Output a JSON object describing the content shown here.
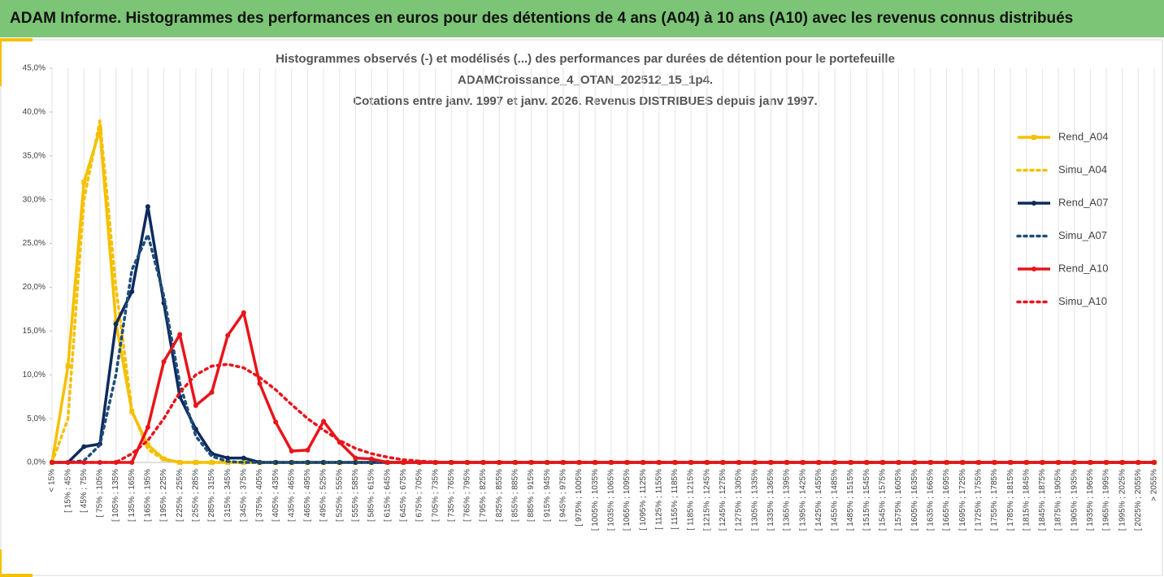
{
  "header": {
    "title": "ADAM Informe. Histogrammes des performances en euros pour des détentions de 4 ans (A04) à 10 ans (A10) avec les revenus connus distribués"
  },
  "chart_data": {
    "type": "line",
    "title": [
      "Histogrammes observés (-) et modélisés (...) des performances par durées de détention pour le portefeuille",
      "ADAMCroissance_4_OTAN_202512_15_1p4.",
      "Cotations entre janv. 1997 et janv. 2026. Revenus DISTRIBUES depuis janv 1997."
    ],
    "categories": [
      "< 15%",
      "[ 15% ; 45%",
      "[ 45% ; 75%",
      "[ 75% ; 105%",
      "[ 105% ; 135%",
      "[ 135% ; 165%",
      "[ 165% ; 195%",
      "[ 195% ; 225%",
      "[ 225% ; 255%",
      "[ 255% ; 285%",
      "[ 285% ; 315%",
      "[ 315% ; 345%",
      "[ 345% ; 375%",
      "[ 375% ; 405%",
      "[ 405% ; 435%",
      "[ 435% ; 465%",
      "[ 465% ; 495%",
      "[ 495% ; 525%",
      "[ 525% ; 555%",
      "[ 555% ; 585%",
      "[ 585% ; 615%",
      "[ 615% ; 645%",
      "[ 645% ; 675%",
      "[ 675% ; 705%",
      "[ 705% ; 735%",
      "[ 735% ; 765%",
      "[ 765% ; 795%",
      "[ 795% ; 825%",
      "[ 825% ; 855%",
      "[ 855% ; 885%",
      "[ 885% ; 915%",
      "[ 915% ; 945%",
      "[ 945% ; 975%",
      "[ 975% ; 1005%",
      "[ 1005% ; 1035%",
      "[ 1035% ; 1065%",
      "[ 1065% ; 1095%",
      "[ 1095% ; 1125%",
      "[ 1125% ; 1155%",
      "[ 1155% ; 1185%",
      "[ 1185% ; 1215%",
      "[ 1215% ; 1245%",
      "[ 1245% ; 1275%",
      "[ 1275% ; 1305%",
      "[ 1305% ; 1335%",
      "[ 1335% ; 1365%",
      "[ 1365% ; 1395%",
      "[ 1395% ; 1425%",
      "[ 1425% ; 1455%",
      "[ 1455% ; 1485%",
      "[ 1485% ; 1515%",
      "[ 1515% ; 1545%",
      "[ 1545% ; 1575%",
      "[ 1575% ; 1605%",
      "[ 1605% ; 1635%",
      "[ 1635% ; 1665%",
      "[ 1665% ; 1695%",
      "[ 1695% ; 1725%",
      "[ 1725% ; 1755%",
      "[ 1755% ; 1785%",
      "[ 1785% ; 1815%",
      "[ 1815% ; 1845%",
      "[ 1845% ; 1875%",
      "[ 1875% ; 1905%",
      "[ 1905% ; 1935%",
      "[ 1935% ; 1965%",
      "[ 1965% ; 1995%",
      "[ 1995% ; 2025%",
      "[ 2025% ; 2055%",
      "> 2055%"
    ],
    "series": [
      {
        "name": "Rend_A04",
        "color": "#f5c000",
        "marker": "square",
        "dash": false,
        "values": [
          0,
          11,
          32,
          38,
          16,
          5.8,
          2,
          0.4,
          0,
          0,
          0,
          0,
          0,
          0,
          0,
          0,
          0,
          0,
          0,
          0,
          0,
          0,
          0,
          0,
          0,
          0,
          0,
          0,
          0,
          0,
          0,
          0,
          0,
          0,
          0,
          0,
          0,
          0,
          0,
          0,
          0,
          0,
          0,
          0,
          0,
          0,
          0,
          0,
          0,
          0,
          0,
          0,
          0,
          0,
          0,
          0,
          0,
          0,
          0,
          0,
          0,
          0,
          0,
          0,
          0,
          0,
          0,
          0,
          0,
          0
        ]
      },
      {
        "name": "Simu_A04",
        "color": "#f5c000",
        "marker": null,
        "dash": true,
        "values": [
          0,
          5,
          30,
          39,
          20,
          6,
          1.5,
          0.3,
          0,
          0,
          0,
          0,
          0,
          0,
          0,
          0,
          0,
          0,
          0,
          0,
          0,
          0,
          0,
          0,
          0,
          0,
          0,
          0,
          0,
          0,
          0,
          0,
          0,
          0,
          0,
          0,
          0,
          0,
          0,
          0,
          0,
          0,
          0,
          0,
          0,
          0,
          0,
          0,
          0,
          0,
          0,
          0,
          0,
          0,
          0,
          0,
          0,
          0,
          0,
          0,
          0,
          0,
          0,
          0,
          0,
          0,
          0,
          0,
          0,
          0
        ]
      },
      {
        "name": "Rend_A07",
        "color": "#0e2a5e",
        "marker": "circle",
        "dash": false,
        "values": [
          0,
          0,
          1.8,
          2.1,
          15.8,
          19.5,
          29.2,
          18.2,
          7.5,
          3.8,
          1,
          0.5,
          0.5,
          0,
          0,
          0,
          0,
          0,
          0,
          0,
          0,
          0,
          0,
          0,
          0,
          0,
          0,
          0,
          0,
          0,
          0,
          0,
          0,
          0,
          0,
          0,
          0,
          0,
          0,
          0,
          0,
          0,
          0,
          0,
          0,
          0,
          0,
          0,
          0,
          0,
          0,
          0,
          0,
          0,
          0,
          0,
          0,
          0,
          0,
          0,
          0,
          0,
          0,
          0,
          0,
          0,
          0,
          0,
          0,
          0
        ]
      },
      {
        "name": "Simu_A07",
        "color": "#1f4e79",
        "marker": null,
        "dash": true,
        "values": [
          0,
          0,
          0.2,
          2,
          10,
          22,
          26,
          19,
          9,
          3,
          0.7,
          0.1,
          0,
          0,
          0,
          0,
          0,
          0,
          0,
          0,
          0,
          0,
          0,
          0,
          0,
          0,
          0,
          0,
          0,
          0,
          0,
          0,
          0,
          0,
          0,
          0,
          0,
          0,
          0,
          0,
          0,
          0,
          0,
          0,
          0,
          0,
          0,
          0,
          0,
          0,
          0,
          0,
          0,
          0,
          0,
          0,
          0,
          0,
          0,
          0,
          0,
          0,
          0,
          0,
          0,
          0,
          0,
          0,
          0,
          0
        ]
      },
      {
        "name": "Rend_A10",
        "color": "#e8141b",
        "marker": "circle",
        "dash": false,
        "values": [
          0,
          0,
          0,
          0,
          0,
          0,
          4,
          11.5,
          14.6,
          6.5,
          8,
          14.5,
          17.1,
          9,
          4.6,
          1.3,
          1.4,
          4.7,
          2.3,
          0.5,
          0.4,
          0,
          0,
          0,
          0,
          0,
          0,
          0,
          0,
          0,
          0,
          0,
          0,
          0,
          0,
          0,
          0,
          0,
          0,
          0,
          0,
          0,
          0,
          0,
          0,
          0,
          0,
          0,
          0,
          0,
          0,
          0,
          0,
          0,
          0,
          0,
          0,
          0,
          0,
          0,
          0,
          0,
          0,
          0,
          0,
          0,
          0,
          0,
          0,
          0
        ]
      },
      {
        "name": "Simu_A10",
        "color": "#e8141b",
        "marker": null,
        "dash": true,
        "values": [
          0,
          0,
          0,
          0,
          0,
          1,
          2.5,
          5,
          8,
          10,
          11,
          11.2,
          10.8,
          9.7,
          8.3,
          6.6,
          5,
          3.7,
          2.5,
          1.6,
          1,
          0.6,
          0.3,
          0.15,
          0.05,
          0,
          0,
          0,
          0,
          0,
          0,
          0,
          0,
          0,
          0,
          0,
          0,
          0,
          0,
          0,
          0,
          0,
          0,
          0,
          0,
          0,
          0,
          0,
          0,
          0,
          0,
          0,
          0,
          0,
          0,
          0,
          0,
          0,
          0,
          0,
          0,
          0,
          0,
          0,
          0,
          0,
          0,
          0,
          0,
          0
        ]
      }
    ],
    "ylim": [
      0,
      45
    ],
    "yticks": [
      {
        "value": 0,
        "label": "0,0%"
      },
      {
        "value": 5,
        "label": "5,0%"
      },
      {
        "value": 10,
        "label": "10,0%"
      },
      {
        "value": 15,
        "label": "15,0%"
      },
      {
        "value": 20,
        "label": "20,0%"
      },
      {
        "value": 25,
        "label": "25,0%"
      },
      {
        "value": 30,
        "label": "30,0%"
      },
      {
        "value": 35,
        "label": "35,0%"
      },
      {
        "value": 40,
        "label": "40,0%"
      },
      {
        "value": 45,
        "label": "45,0%"
      }
    ],
    "grid": "x",
    "legend": "right"
  }
}
